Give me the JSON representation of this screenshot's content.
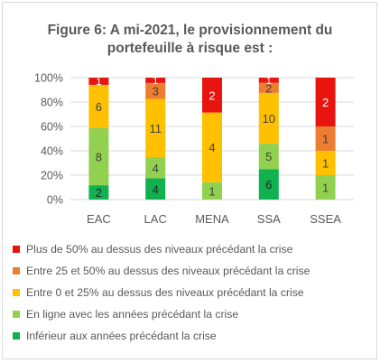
{
  "colors": {
    "plus50": "#e8140f",
    "e25_50": "#ed7d31",
    "e0_25": "#ffc000",
    "enligne": "#92d050",
    "inferieur": "#10b14f"
  },
  "chart_data": {
    "type": "bar",
    "stacked": true,
    "normalized": true,
    "title": "Figure 6: A mi-2021, le provisionnement du portefeuille à risque est :",
    "title_lines": [
      "Figure 6: A mi-2021, le provisionnement du",
      "portefeuille à risque est :"
    ],
    "categories": [
      "EAC",
      "LAC",
      "MENA",
      "SSA",
      "SSEA"
    ],
    "ylim": [
      0,
      100
    ],
    "y_ticks": [
      "0%",
      "20%",
      "40%",
      "60%",
      "80%",
      "100%"
    ],
    "legend_position": "bottom",
    "series": [
      {
        "name": "Inférieur aux années précédant la crise",
        "color": "#10b14f",
        "values": [
          2,
          4,
          0,
          6,
          0
        ]
      },
      {
        "name": "En ligne avec les années précédant la crise",
        "color": "#92d050",
        "values": [
          8,
          4,
          1,
          5,
          1
        ]
      },
      {
        "name": "Entre 0 et 25% au dessus des niveaux précédant la crise",
        "color": "#ffc000",
        "values": [
          6,
          11,
          4,
          10,
          1
        ]
      },
      {
        "name": "Entre 25 et 50% au dessus des niveaux précédant la crise",
        "color": "#ed7d31",
        "values": [
          0,
          3,
          0,
          2,
          1
        ]
      },
      {
        "name": "Plus de 50% au dessus des niveaux précédant la crise",
        "color": "#e8140f",
        "values": [
          1,
          1,
          2,
          1,
          2
        ]
      }
    ]
  },
  "legend": [
    {
      "label": "Plus de 50% au dessus des niveaux précédant la crise",
      "color": "#e8140f"
    },
    {
      "label": "Entre 25 et 50% au dessus des niveaux précédant la crise",
      "color": "#ed7d31"
    },
    {
      "label": "Entre 0 et 25% au dessus des niveaux précédant la crise",
      "color": "#ffc000"
    },
    {
      "label": "En ligne avec les années précédant la crise",
      "color": "#92d050"
    },
    {
      "label": "Inférieur aux années précédant la crise",
      "color": "#10b14f"
    }
  ]
}
